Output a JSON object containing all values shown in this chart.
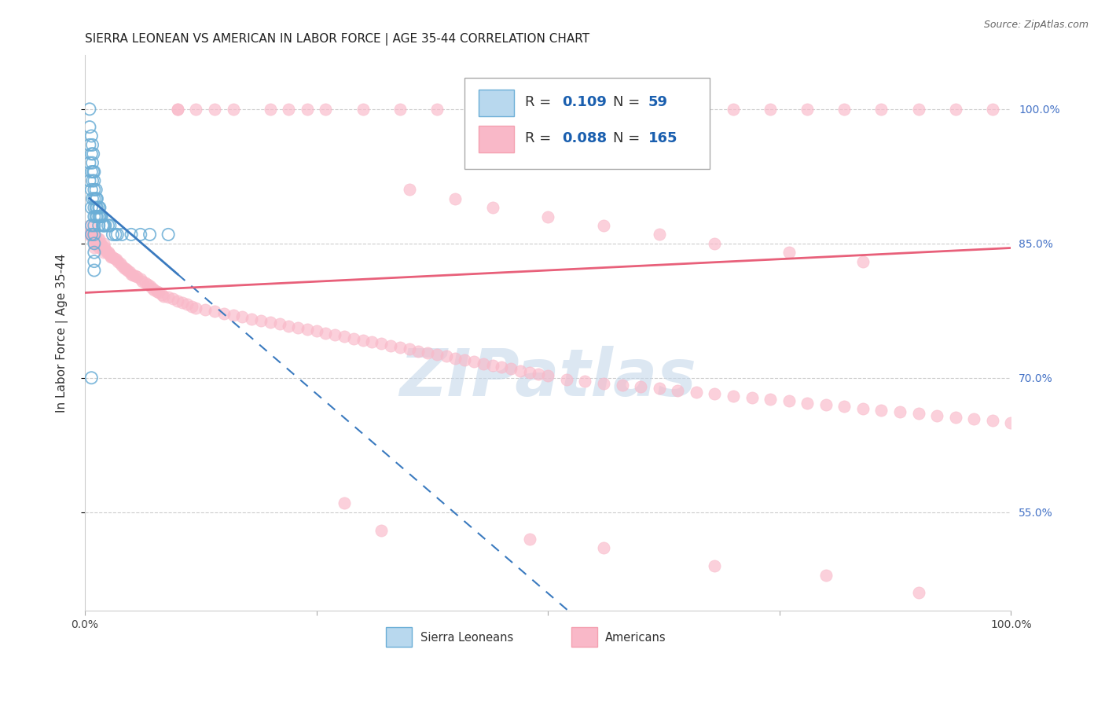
{
  "title": "SIERRA LEONEAN VS AMERICAN IN LABOR FORCE | AGE 35-44 CORRELATION CHART",
  "source": "Source: ZipAtlas.com",
  "ylabel": "In Labor Force | Age 35-44",
  "y_tick_labels_right": [
    "55.0%",
    "70.0%",
    "85.0%",
    "100.0%"
  ],
  "y_tick_positions_right": [
    0.55,
    0.7,
    0.85,
    1.0
  ],
  "xlim": [
    0.0,
    1.0
  ],
  "ylim": [
    0.44,
    1.06
  ],
  "blue_color": "#7fbfdf",
  "blue_face_color": "none",
  "blue_edge_color": "#6baed6",
  "pink_face_color": "#f9b8c8",
  "pink_edge_color": "#f9b8c8",
  "blue_line_color": "#3a7abf",
  "pink_line_color": "#e8607a",
  "background_color": "#ffffff",
  "grid_color": "#cccccc",
  "watermark": "ZIPatlas",
  "watermark_color": "#c5d8ea",
  "title_fontsize": 11,
  "axis_label_fontsize": 11,
  "tick_fontsize": 10,
  "legend_fontsize": 13,
  "blue_scatter_x": [
    0.005,
    0.005,
    0.005,
    0.005,
    0.005,
    0.007,
    0.007,
    0.007,
    0.007,
    0.007,
    0.007,
    0.007,
    0.008,
    0.008,
    0.008,
    0.008,
    0.009,
    0.009,
    0.01,
    0.01,
    0.01,
    0.01,
    0.01,
    0.01,
    0.01,
    0.01,
    0.01,
    0.01,
    0.01,
    0.01,
    0.012,
    0.012,
    0.012,
    0.012,
    0.013,
    0.013,
    0.013,
    0.015,
    0.015,
    0.015,
    0.016,
    0.016,
    0.017,
    0.018,
    0.019,
    0.02,
    0.021,
    0.022,
    0.025,
    0.027,
    0.03,
    0.033,
    0.035,
    0.04,
    0.05,
    0.06,
    0.07,
    0.09,
    0.007
  ],
  "blue_scatter_y": [
    1.0,
    0.98,
    0.96,
    0.94,
    0.92,
    0.97,
    0.95,
    0.93,
    0.91,
    0.89,
    0.87,
    0.86,
    0.96,
    0.94,
    0.92,
    0.9,
    0.95,
    0.93,
    0.93,
    0.92,
    0.91,
    0.9,
    0.89,
    0.88,
    0.87,
    0.86,
    0.85,
    0.84,
    0.83,
    0.82,
    0.91,
    0.9,
    0.89,
    0.88,
    0.9,
    0.89,
    0.88,
    0.89,
    0.88,
    0.87,
    0.89,
    0.88,
    0.88,
    0.88,
    0.87,
    0.87,
    0.87,
    0.87,
    0.87,
    0.87,
    0.86,
    0.86,
    0.86,
    0.86,
    0.86,
    0.86,
    0.86,
    0.86,
    0.7
  ],
  "pink_scatter_x": [
    0.003,
    0.005,
    0.006,
    0.007,
    0.008,
    0.009,
    0.01,
    0.01,
    0.01,
    0.011,
    0.012,
    0.013,
    0.014,
    0.015,
    0.015,
    0.016,
    0.017,
    0.018,
    0.019,
    0.02,
    0.02,
    0.021,
    0.022,
    0.023,
    0.024,
    0.025,
    0.026,
    0.027,
    0.028,
    0.03,
    0.032,
    0.034,
    0.036,
    0.038,
    0.04,
    0.042,
    0.044,
    0.046,
    0.048,
    0.05,
    0.052,
    0.054,
    0.056,
    0.06,
    0.062,
    0.065,
    0.068,
    0.07,
    0.073,
    0.075,
    0.078,
    0.08,
    0.083,
    0.085,
    0.09,
    0.095,
    0.1,
    0.105,
    0.11,
    0.115,
    0.12,
    0.13,
    0.14,
    0.15,
    0.16,
    0.17,
    0.18,
    0.19,
    0.2,
    0.21,
    0.22,
    0.23,
    0.24,
    0.25,
    0.26,
    0.27,
    0.28,
    0.29,
    0.3,
    0.31,
    0.32,
    0.33,
    0.34,
    0.35,
    0.36,
    0.37,
    0.38,
    0.39,
    0.4,
    0.41,
    0.42,
    0.43,
    0.44,
    0.45,
    0.46,
    0.47,
    0.48,
    0.49,
    0.5,
    0.52,
    0.54,
    0.56,
    0.58,
    0.6,
    0.62,
    0.64,
    0.66,
    0.68,
    0.7,
    0.72,
    0.74,
    0.76,
    0.78,
    0.8,
    0.82,
    0.84,
    0.86,
    0.88,
    0.9,
    0.92,
    0.94,
    0.96,
    0.98,
    1.0,
    0.1,
    0.1,
    0.12,
    0.14,
    0.16,
    0.2,
    0.22,
    0.24,
    0.26,
    0.3,
    0.34,
    0.38,
    0.42,
    0.46,
    0.5,
    0.54,
    0.58,
    0.62,
    0.66,
    0.7,
    0.74,
    0.78,
    0.82,
    0.86,
    0.9,
    0.94,
    0.98,
    0.35,
    0.4,
    0.44,
    0.5,
    0.56,
    0.62,
    0.68,
    0.76,
    0.84,
    0.28,
    0.32,
    0.48,
    0.56,
    0.68,
    0.8,
    0.9
  ],
  "pink_scatter_y": [
    0.86,
    0.87,
    0.86,
    0.86,
    0.855,
    0.86,
    0.86,
    0.85,
    0.845,
    0.855,
    0.855,
    0.85,
    0.855,
    0.855,
    0.845,
    0.85,
    0.85,
    0.848,
    0.845,
    0.85,
    0.84,
    0.845,
    0.843,
    0.842,
    0.84,
    0.84,
    0.838,
    0.837,
    0.835,
    0.835,
    0.833,
    0.832,
    0.83,
    0.828,
    0.825,
    0.823,
    0.822,
    0.82,
    0.818,
    0.816,
    0.815,
    0.814,
    0.813,
    0.81,
    0.808,
    0.806,
    0.804,
    0.802,
    0.8,
    0.798,
    0.796,
    0.795,
    0.793,
    0.791,
    0.79,
    0.788,
    0.786,
    0.784,
    0.782,
    0.78,
    0.778,
    0.776,
    0.774,
    0.772,
    0.77,
    0.768,
    0.766,
    0.764,
    0.762,
    0.76,
    0.758,
    0.756,
    0.754,
    0.752,
    0.75,
    0.748,
    0.746,
    0.744,
    0.742,
    0.74,
    0.738,
    0.736,
    0.734,
    0.732,
    0.73,
    0.728,
    0.726,
    0.724,
    0.722,
    0.72,
    0.718,
    0.716,
    0.714,
    0.712,
    0.71,
    0.708,
    0.706,
    0.704,
    0.702,
    0.698,
    0.696,
    0.694,
    0.692,
    0.69,
    0.688,
    0.686,
    0.684,
    0.682,
    0.68,
    0.678,
    0.676,
    0.674,
    0.672,
    0.67,
    0.668,
    0.666,
    0.664,
    0.662,
    0.66,
    0.658,
    0.656,
    0.654,
    0.652,
    0.65,
    1.0,
    1.0,
    1.0,
    1.0,
    1.0,
    1.0,
    1.0,
    1.0,
    1.0,
    1.0,
    1.0,
    1.0,
    1.0,
    1.0,
    1.0,
    1.0,
    1.0,
    1.0,
    1.0,
    1.0,
    1.0,
    1.0,
    1.0,
    1.0,
    1.0,
    1.0,
    1.0,
    0.91,
    0.9,
    0.89,
    0.88,
    0.87,
    0.86,
    0.85,
    0.84,
    0.83,
    0.56,
    0.53,
    0.52,
    0.51,
    0.49,
    0.48,
    0.46
  ]
}
